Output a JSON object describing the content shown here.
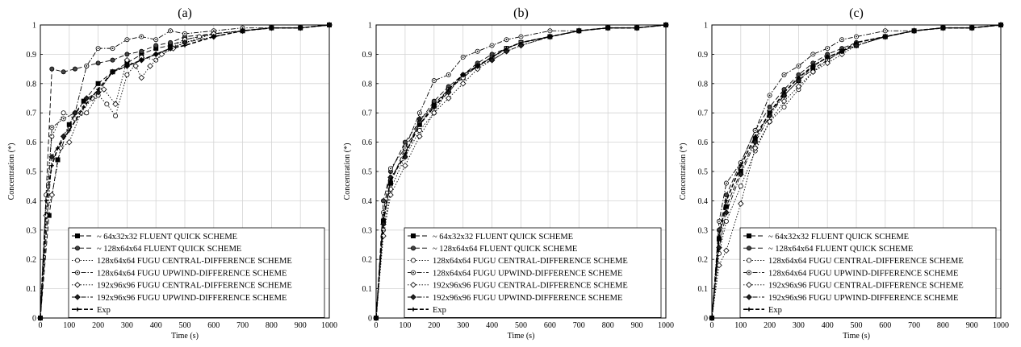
{
  "chart_data": [
    {
      "type": "line",
      "title": "(a)",
      "xlabel": "Time (s)",
      "ylabel": "Concentration (*)",
      "xlim": [
        0,
        1000
      ],
      "ylim": [
        0,
        1
      ],
      "xticks": [
        "0",
        "100",
        "200",
        "300",
        "400",
        "500",
        "600",
        "700",
        "800",
        "900",
        "1000"
      ],
      "yticks": [
        "0",
        "0.1",
        "0.2",
        "0.3",
        "0.4",
        "0.5",
        "0.6",
        "0.7",
        "0.8",
        "0.9",
        "1"
      ],
      "grid": true,
      "legend_position": "bottom-right",
      "series": [
        {
          "name": "~ 64x32x32 FLUENT QUICK SCHEME",
          "marker": "square",
          "dash": "dashed",
          "x": [
            0,
            30,
            60,
            100,
            150,
            200,
            250,
            300,
            350,
            400,
            450,
            500,
            600,
            700,
            800,
            900,
            1000
          ],
          "y": [
            0,
            0.35,
            0.54,
            0.66,
            0.74,
            0.8,
            0.84,
            0.87,
            0.9,
            0.92,
            0.93,
            0.95,
            0.97,
            0.98,
            0.99,
            0.99,
            1.0
          ]
        },
        {
          "name": "~ 128x64x64 FLUENT QUICK SCHEME",
          "marker": "circle",
          "dash": "dashed",
          "x": [
            0,
            40,
            80,
            120,
            160,
            200,
            250,
            300,
            350,
            400,
            450,
            500,
            600,
            700,
            800,
            900,
            1000
          ],
          "y": [
            0,
            0.85,
            0.84,
            0.85,
            0.86,
            0.87,
            0.88,
            0.9,
            0.91,
            0.93,
            0.94,
            0.96,
            0.97,
            0.98,
            0.99,
            0.99,
            1.0
          ]
        },
        {
          "name": "128x64x64 FUGU CENTRAL-DIFFERENCE SCHEME",
          "marker": "circle-open",
          "dash": "dotted",
          "x": [
            0,
            20,
            40,
            80,
            120,
            160,
            200,
            230,
            260,
            300,
            350,
            400,
            450,
            500,
            550,
            600,
            700,
            800,
            900,
            1000
          ],
          "y": [
            0,
            0.42,
            0.62,
            0.7,
            0.68,
            0.7,
            0.76,
            0.73,
            0.69,
            0.83,
            0.89,
            0.88,
            0.92,
            0.95,
            0.96,
            0.97,
            0.98,
            0.99,
            0.99,
            1.0
          ]
        },
        {
          "name": "128x64x64 FUGU UPWIND-DIFFERENCE SCHEME",
          "marker": "circle-dot",
          "dash": "dashdot",
          "x": [
            0,
            40,
            80,
            120,
            160,
            200,
            250,
            300,
            350,
            400,
            450,
            500,
            600,
            700,
            800,
            900,
            1000
          ],
          "y": [
            0,
            0.65,
            0.68,
            0.7,
            0.86,
            0.92,
            0.92,
            0.95,
            0.96,
            0.95,
            0.98,
            0.97,
            0.98,
            0.99,
            0.99,
            0.99,
            1.0
          ]
        },
        {
          "name": "192x96x96 FUGU CENTRAL-DIFFERENCE SCHEME",
          "marker": "diamond-open",
          "dash": "dotted",
          "x": [
            0,
            20,
            40,
            70,
            100,
            140,
            180,
            220,
            260,
            300,
            330,
            350,
            380,
            420,
            460,
            500,
            600,
            700,
            800,
            900,
            1000
          ],
          "y": [
            0,
            0.35,
            0.42,
            0.58,
            0.6,
            0.7,
            0.75,
            0.78,
            0.73,
            0.88,
            0.86,
            0.82,
            0.86,
            0.9,
            0.92,
            0.94,
            0.97,
            0.98,
            0.99,
            0.99,
            1.0
          ]
        },
        {
          "name": "192x96x96 FUGU UPWIND-DIFFERENCE SCHEME",
          "marker": "diamond",
          "dash": "dashdot",
          "x": [
            0,
            40,
            80,
            120,
            160,
            200,
            250,
            300,
            350,
            400,
            450,
            500,
            600,
            700,
            800,
            900,
            1000
          ],
          "y": [
            0,
            0.55,
            0.62,
            0.7,
            0.75,
            0.77,
            0.84,
            0.86,
            0.88,
            0.9,
            0.92,
            0.94,
            0.96,
            0.98,
            0.99,
            0.99,
            1.0
          ]
        },
        {
          "name": "Exp",
          "marker": "star",
          "dash": "heavydash",
          "x": [
            0,
            20,
            40,
            60,
            100,
            150,
            200,
            250,
            300,
            350,
            400,
            450,
            500,
            600,
            700,
            800,
            900,
            1000
          ],
          "y": [
            0,
            0.4,
            0.52,
            0.58,
            0.64,
            0.72,
            0.78,
            0.84,
            0.86,
            0.88,
            0.9,
            0.92,
            0.93,
            0.96,
            0.98,
            0.99,
            0.99,
            1.0
          ]
        }
      ]
    },
    {
      "type": "line",
      "title": "(b)",
      "xlabel": "Time (s)",
      "ylabel": "Concentration (*)",
      "xlim": [
        0,
        1000
      ],
      "ylim": [
        0,
        1
      ],
      "xticks": [
        "0",
        "100",
        "200",
        "300",
        "400",
        "500",
        "600",
        "700",
        "800",
        "900",
        "1000"
      ],
      "yticks": [
        "0",
        "0.1",
        "0.2",
        "0.3",
        "0.4",
        "0.5",
        "0.6",
        "0.7",
        "0.8",
        "0.9",
        "1"
      ],
      "grid": true,
      "legend_position": "bottom-right",
      "series": [
        {
          "name": "~ 64x32x32 FLUENT QUICK SCHEME",
          "marker": "square",
          "dash": "dashed",
          "x": [
            0,
            25,
            50,
            100,
            150,
            200,
            250,
            300,
            350,
            400,
            450,
            500,
            600,
            700,
            800,
            900,
            1000
          ],
          "y": [
            0,
            0.33,
            0.46,
            0.58,
            0.66,
            0.73,
            0.78,
            0.82,
            0.86,
            0.89,
            0.92,
            0.94,
            0.96,
            0.98,
            0.99,
            0.99,
            1.0
          ]
        },
        {
          "name": "~ 128x64x64 FLUENT QUICK SCHEME",
          "marker": "circle",
          "dash": "dashed",
          "x": [
            0,
            25,
            50,
            100,
            150,
            200,
            250,
            300,
            350,
            400,
            450,
            500,
            600,
            700,
            800,
            900,
            1000
          ],
          "y": [
            0,
            0.4,
            0.5,
            0.6,
            0.67,
            0.74,
            0.79,
            0.83,
            0.87,
            0.9,
            0.92,
            0.94,
            0.96,
            0.98,
            0.99,
            0.99,
            1.0
          ]
        },
        {
          "name": "128x64x64 FUGU CENTRAL-DIFFERENCE SCHEME",
          "marker": "circle-open",
          "dash": "dotted",
          "x": [
            0,
            25,
            50,
            100,
            150,
            200,
            250,
            300,
            350,
            400,
            450,
            500,
            600,
            700,
            800,
            900,
            1000
          ],
          "y": [
            0,
            0.3,
            0.44,
            0.55,
            0.64,
            0.7,
            0.78,
            0.82,
            0.86,
            0.89,
            0.92,
            0.94,
            0.96,
            0.98,
            0.99,
            0.99,
            1.0
          ]
        },
        {
          "name": "128x64x64 FUGU UPWIND-DIFFERENCE SCHEME",
          "marker": "circle-dot",
          "dash": "dashdot",
          "x": [
            0,
            25,
            50,
            100,
            150,
            200,
            250,
            300,
            350,
            400,
            450,
            500,
            600,
            700,
            800,
            900,
            1000
          ],
          "y": [
            0,
            0.36,
            0.51,
            0.58,
            0.7,
            0.81,
            0.83,
            0.89,
            0.91,
            0.93,
            0.95,
            0.96,
            0.98,
            0.98,
            0.99,
            0.99,
            1.0
          ]
        },
        {
          "name": "192x96x96 FUGU CENTRAL-DIFFERENCE SCHEME",
          "marker": "diamond-open",
          "dash": "dotted",
          "x": [
            0,
            25,
            50,
            100,
            150,
            200,
            250,
            300,
            350,
            400,
            450,
            500,
            600,
            700,
            800,
            900,
            1000
          ],
          "y": [
            0,
            0.28,
            0.42,
            0.52,
            0.62,
            0.7,
            0.75,
            0.8,
            0.85,
            0.88,
            0.91,
            0.93,
            0.96,
            0.98,
            0.99,
            0.99,
            1.0
          ]
        },
        {
          "name": "192x96x96 FUGU UPWIND-DIFFERENCE SCHEME",
          "marker": "diamond",
          "dash": "dashdot",
          "x": [
            0,
            25,
            50,
            100,
            150,
            200,
            250,
            300,
            350,
            400,
            450,
            500,
            600,
            700,
            800,
            900,
            1000
          ],
          "y": [
            0,
            0.32,
            0.48,
            0.55,
            0.68,
            0.72,
            0.77,
            0.83,
            0.86,
            0.88,
            0.91,
            0.93,
            0.96,
            0.98,
            0.99,
            0.99,
            1.0
          ]
        },
        {
          "name": "Exp",
          "marker": "star",
          "dash": "heavydash",
          "x": [
            0,
            25,
            50,
            100,
            150,
            200,
            250,
            300,
            350,
            400,
            450,
            500,
            600,
            700,
            800,
            900,
            1000
          ],
          "y": [
            0,
            0.34,
            0.47,
            0.56,
            0.66,
            0.72,
            0.78,
            0.83,
            0.86,
            0.89,
            0.92,
            0.94,
            0.96,
            0.98,
            0.99,
            0.99,
            1.0
          ]
        }
      ]
    },
    {
      "type": "line",
      "title": "(c)",
      "xlabel": "Time (s)",
      "ylabel": "Concentration (*)",
      "xlim": [
        0,
        1000
      ],
      "ylim": [
        0,
        1
      ],
      "xticks": [
        "0",
        "100",
        "200",
        "300",
        "400",
        "500",
        "600",
        "700",
        "800",
        "900",
        "1000"
      ],
      "yticks": [
        "0",
        "0.1",
        "0.2",
        "0.3",
        "0.4",
        "0.5",
        "0.6",
        "0.7",
        "0.8",
        "0.9",
        "1"
      ],
      "grid": true,
      "legend_position": "bottom-right",
      "series": [
        {
          "name": "~ 64x32x32 FLUENT QUICK SCHEME",
          "marker": "square",
          "dash": "dashed",
          "x": [
            0,
            25,
            50,
            100,
            150,
            200,
            250,
            300,
            350,
            400,
            450,
            500,
            600,
            700,
            800,
            900,
            1000
          ],
          "y": [
            0,
            0.27,
            0.38,
            0.5,
            0.61,
            0.7,
            0.76,
            0.81,
            0.85,
            0.88,
            0.91,
            0.93,
            0.96,
            0.98,
            0.99,
            0.99,
            1.0
          ]
        },
        {
          "name": "~ 128x64x64 FLUENT QUICK SCHEME",
          "marker": "circle",
          "dash": "dashed",
          "x": [
            0,
            25,
            50,
            100,
            150,
            200,
            250,
            300,
            350,
            400,
            450,
            500,
            600,
            700,
            800,
            900,
            1000
          ],
          "y": [
            0,
            0.3,
            0.42,
            0.53,
            0.64,
            0.72,
            0.78,
            0.83,
            0.87,
            0.9,
            0.92,
            0.94,
            0.96,
            0.98,
            0.99,
            0.99,
            1.0
          ]
        },
        {
          "name": "128x64x64 FUGU CENTRAL-DIFFERENCE SCHEME",
          "marker": "circle-open",
          "dash": "dotted",
          "x": [
            0,
            25,
            50,
            100,
            150,
            200,
            250,
            300,
            350,
            400,
            450,
            500,
            600,
            700,
            800,
            900,
            1000
          ],
          "y": [
            0,
            0.22,
            0.33,
            0.45,
            0.57,
            0.67,
            0.72,
            0.78,
            0.84,
            0.88,
            0.91,
            0.93,
            0.96,
            0.98,
            0.99,
            0.99,
            1.0
          ]
        },
        {
          "name": "128x64x64 FUGU UPWIND-DIFFERENCE SCHEME",
          "marker": "circle-dot",
          "dash": "dashdot",
          "x": [
            0,
            25,
            50,
            100,
            150,
            200,
            250,
            300,
            350,
            400,
            450,
            500,
            600,
            700,
            800,
            900,
            1000
          ],
          "y": [
            0,
            0.33,
            0.46,
            0.53,
            0.64,
            0.76,
            0.83,
            0.86,
            0.9,
            0.92,
            0.95,
            0.96,
            0.98,
            0.98,
            0.99,
            0.99,
            1.0
          ]
        },
        {
          "name": "192x96x96 FUGU CENTRAL-DIFFERENCE SCHEME",
          "marker": "diamond-open",
          "dash": "dotted",
          "x": [
            0,
            25,
            50,
            100,
            150,
            200,
            250,
            300,
            350,
            400,
            450,
            500,
            600,
            700,
            800,
            900,
            1000
          ],
          "y": [
            0,
            0.18,
            0.23,
            0.39,
            0.58,
            0.67,
            0.74,
            0.79,
            0.84,
            0.87,
            0.9,
            0.93,
            0.96,
            0.98,
            0.99,
            0.99,
            1.0
          ]
        },
        {
          "name": "192x96x96 FUGU UPWIND-DIFFERENCE SCHEME",
          "marker": "diamond",
          "dash": "dashdot",
          "x": [
            0,
            25,
            50,
            100,
            150,
            200,
            250,
            300,
            350,
            400,
            450,
            500,
            600,
            700,
            800,
            900,
            1000
          ],
          "y": [
            0,
            0.24,
            0.36,
            0.49,
            0.6,
            0.69,
            0.76,
            0.81,
            0.86,
            0.89,
            0.91,
            0.93,
            0.96,
            0.98,
            0.99,
            0.99,
            1.0
          ]
        },
        {
          "name": "Exp",
          "marker": "star",
          "dash": "heavydash",
          "x": [
            0,
            25,
            50,
            100,
            150,
            200,
            250,
            300,
            350,
            400,
            450,
            500,
            600,
            700,
            800,
            900,
            1000
          ],
          "y": [
            0,
            0.28,
            0.4,
            0.52,
            0.62,
            0.7,
            0.77,
            0.82,
            0.86,
            0.89,
            0.91,
            0.94,
            0.96,
            0.98,
            0.99,
            0.99,
            1.0
          ]
        }
      ]
    }
  ]
}
